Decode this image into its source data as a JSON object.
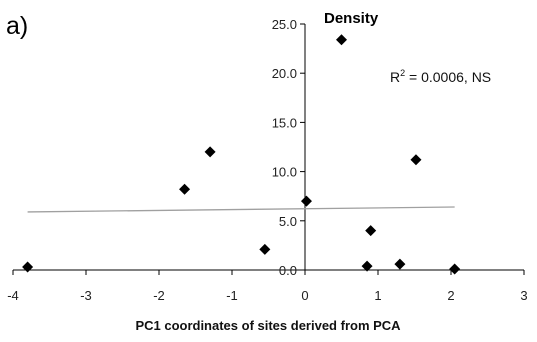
{
  "panel_label": "a)",
  "chart_data": {
    "type": "scatter",
    "title": "Density",
    "xlabel": "PC1 coordinates of sites derived from PCA",
    "ylabel": "",
    "xlim": [
      -4,
      3
    ],
    "ylim": [
      0,
      25
    ],
    "x_ticks": [
      -4,
      -3,
      -2,
      -1,
      0,
      1,
      2,
      3
    ],
    "x_tick_labels": [
      "-4",
      "-3",
      "-2",
      "-1",
      "0",
      "1",
      "2",
      "3"
    ],
    "y_ticks": [
      0,
      5,
      10,
      15,
      20,
      25
    ],
    "y_tick_labels": [
      "0.0",
      "5.0",
      "10.0",
      "15.0",
      "20.0",
      "25.0"
    ],
    "grid": false,
    "marker": "diamond",
    "marker_color": "#000000",
    "trendline_color": "#a0a0a0",
    "points": [
      {
        "x": -3.8,
        "y": 0.3
      },
      {
        "x": -1.65,
        "y": 8.2
      },
      {
        "x": -1.3,
        "y": 12.0
      },
      {
        "x": -0.55,
        "y": 2.1
      },
      {
        "x": 0.02,
        "y": 7.0
      },
      {
        "x": 0.5,
        "y": 23.4
      },
      {
        "x": 0.85,
        "y": 0.4
      },
      {
        "x": 0.9,
        "y": 4.0
      },
      {
        "x": 1.3,
        "y": 0.6
      },
      {
        "x": 1.52,
        "y": 11.2
      },
      {
        "x": 2.05,
        "y": 0.1
      }
    ],
    "trendline": {
      "x": [
        -3.8,
        2.05
      ],
      "y": [
        5.9,
        6.4
      ]
    },
    "annotation": {
      "base": "R",
      "sup": "2",
      "rest": " = 0.0006, NS"
    }
  }
}
